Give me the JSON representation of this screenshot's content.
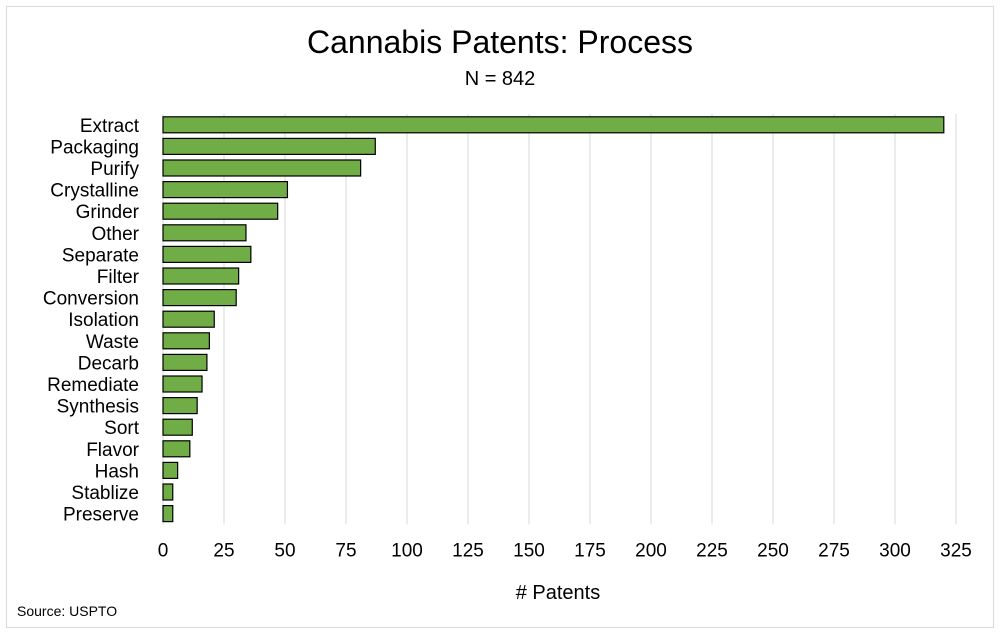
{
  "chart_data": {
    "type": "bar",
    "orientation": "horizontal",
    "title": "Cannabis Patents: Process",
    "subtitle": "N = 842",
    "xlabel": "# Patents",
    "ylabel": "",
    "categories": [
      "Extract",
      "Packaging",
      "Purify",
      "Crystalline",
      "Grinder",
      "Other",
      "Separate",
      "Filter",
      "Conversion",
      "Isolation",
      "Waste",
      "Decarb",
      "Remediate",
      "Synthesis",
      "Sort",
      "Flavor",
      "Hash",
      "Stablize",
      "Preserve"
    ],
    "values": [
      320,
      87,
      81,
      51,
      47,
      34,
      36,
      31,
      30,
      21,
      19,
      18,
      16,
      14,
      12,
      11,
      6,
      4,
      4
    ],
    "xlim": [
      0,
      325
    ],
    "xticks": [
      "0",
      "25",
      "50",
      "75",
      "100",
      "125",
      "150",
      "175",
      "200",
      "225",
      "250",
      "275",
      "300",
      "325"
    ],
    "grid": true,
    "legend": "none",
    "bar_color": "#70ad47"
  },
  "source_note": "Source: USPTO"
}
